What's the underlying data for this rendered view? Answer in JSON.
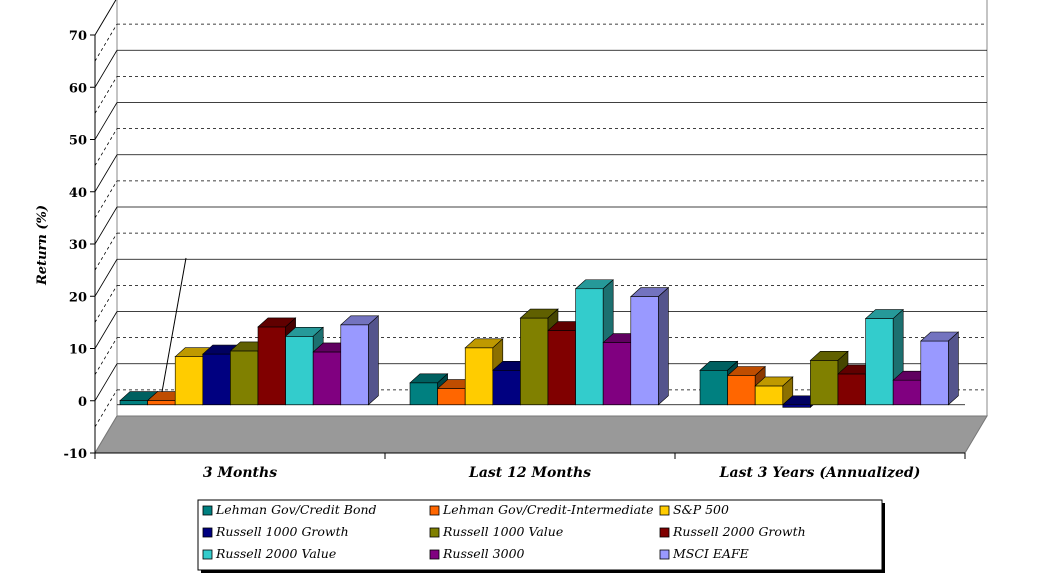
{
  "chart_data": {
    "type": "bar",
    "categories": [
      "3 Months",
      "Last 12 Months",
      "Last 3 Years (Annualized)"
    ],
    "ylabel": "Return (%)",
    "ylim": [
      -10,
      70
    ],
    "yticks": [
      -10,
      0,
      10,
      20,
      30,
      40,
      50,
      60,
      70
    ],
    "grid": true,
    "legend_position": "bottom",
    "series": [
      {
        "name": "Lehman Gov/Credit Bond",
        "color": "#008080",
        "values": [
          0.8,
          4.2,
          6.6
        ]
      },
      {
        "name": "Lehman Gov/Credit-Intermediate",
        "color": "#FF6600",
        "values": [
          0.8,
          3.1,
          5.6
        ]
      },
      {
        "name": "S&P 500",
        "color": "#FFCC00",
        "values": [
          9.2,
          10.9,
          3.6
        ]
      },
      {
        "name": "Russell 1000 Growth",
        "color": "#000080",
        "values": [
          9.7,
          6.6,
          -0.5
        ]
      },
      {
        "name": "Russell 1000 Value",
        "color": "#808000",
        "values": [
          10.3,
          16.6,
          8.5
        ]
      },
      {
        "name": "Russell 2000 Growth",
        "color": "#800000",
        "values": [
          14.9,
          14.2,
          5.9
        ]
      },
      {
        "name": "Russell 2000 Value",
        "color": "#33CCCC",
        "values": [
          13.1,
          22.2,
          16.5
        ]
      },
      {
        "name": "Russell 3000",
        "color": "#800080",
        "values": [
          10.1,
          11.9,
          4.7
        ]
      },
      {
        "name": "MSCI EAFE",
        "color": "#9999FF",
        "values": [
          15.3,
          20.7,
          12.2
        ]
      }
    ]
  }
}
